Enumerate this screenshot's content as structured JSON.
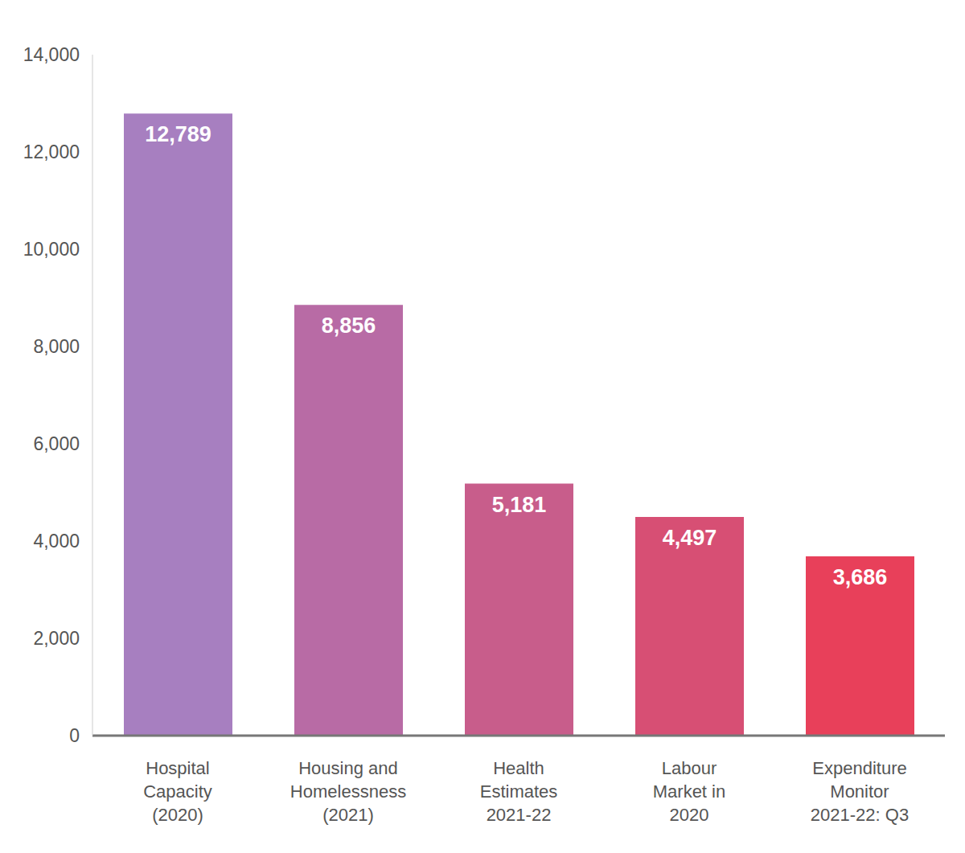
{
  "chart_data": {
    "type": "bar",
    "categories": [
      "Hospital Capacity (2020)",
      "Housing and Homelessness (2021)",
      "Health Estimates 2021-22",
      "Labour Market in 2020",
      "Expenditure Monitor 2021-22: Q3"
    ],
    "values": [
      12789,
      8856,
      5181,
      4497,
      3686
    ],
    "value_labels": [
      "12,789",
      "8,856",
      "5,181",
      "4,497",
      "3,686"
    ],
    "colors": [
      "#a77fc0",
      "#b86ba5",
      "#c85d8b",
      "#d74f74",
      "#e8405a"
    ],
    "ylim": [
      0,
      14000
    ],
    "yticks": [
      0,
      {
        "value": 2000,
        "label": "2,000"
      },
      {
        "value": 4000,
        "label": "4,000"
      },
      {
        "value": 6000,
        "label": "6,000"
      },
      {
        "value": 8000,
        "label": "8,000"
      },
      {
        "value": 10000,
        "label": "10,000"
      },
      {
        "value": 12000,
        "label": "12,000"
      },
      {
        "value": 14000,
        "label": "14,000"
      }
    ],
    "grid": false,
    "data_labels": true
  }
}
